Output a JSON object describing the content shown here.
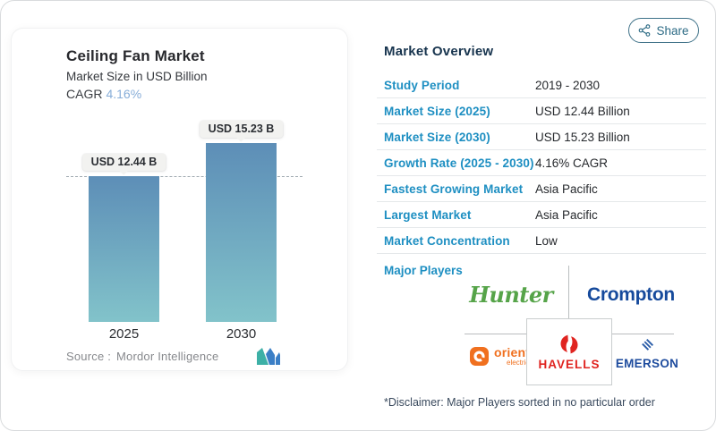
{
  "share_button": {
    "label": "Share",
    "icon": "share-nodes-icon"
  },
  "left_card": {
    "title": "Ceiling Fan Market",
    "subtitle": "Market Size in USD Billion",
    "cagr_label": "CAGR",
    "cagr_value": "4.16%",
    "source_label": "Source :",
    "source_name": "Mordor Intelligence",
    "logo_icon": "mordor-intelligence-logo"
  },
  "chart_data": {
    "type": "bar",
    "title": "Ceiling Fan Market",
    "subtitle": "Market Size in USD Billion",
    "unit": "USD Billion",
    "cagr": "4.16%",
    "categories": [
      "2025",
      "2030"
    ],
    "values": [
      12.44,
      15.23
    ],
    "value_labels": [
      "USD 12.44 B",
      "USD 15.23 B"
    ],
    "ylim": [
      0,
      15.23
    ],
    "grid": false,
    "legend": "none",
    "reference_line": {
      "value": 12.44,
      "style": "dashed"
    },
    "bar_gradient_top": "#5d8eb7",
    "bar_gradient_bottom": "#82c3ca"
  },
  "overview": {
    "heading": "Market Overview",
    "rows": [
      {
        "label": "Study Period",
        "value": "2019 - 2030"
      },
      {
        "label": "Market Size (2025)",
        "value": "USD 12.44 Billion"
      },
      {
        "label": "Market Size (2030)",
        "value": "USD 15.23 Billion"
      },
      {
        "label": "Growth Rate (2025 - 2030)",
        "value": "4.16% CAGR"
      },
      {
        "label": "Fastest Growing Market",
        "value": "Asia Pacific"
      },
      {
        "label": "Largest Market",
        "value": "Asia Pacific"
      },
      {
        "label": "Market Concentration",
        "value": "Low"
      }
    ]
  },
  "major_players": {
    "label": "Major Players",
    "hunter": "Hunter",
    "crompton": "Crompton",
    "orient_line1": "orient",
    "orient_line2": "electric",
    "havells": "HAVELLS",
    "emerson": "EMERSON"
  },
  "disclaimer": "*Disclaimer: Major Players sorted in no particular order",
  "colors": {
    "accent_blue": "#1e8fc2",
    "heading_navy": "#17344e",
    "share_teal": "#2d6b85",
    "hunter_green": "#56a449",
    "crompton_blue": "#164a9c",
    "orient_orange": "#f0701f",
    "havells_red": "#e02420",
    "emerson_blue": "#1e4c9e",
    "bar_top": "#5d8eb7",
    "bar_bottom": "#82c3ca"
  }
}
